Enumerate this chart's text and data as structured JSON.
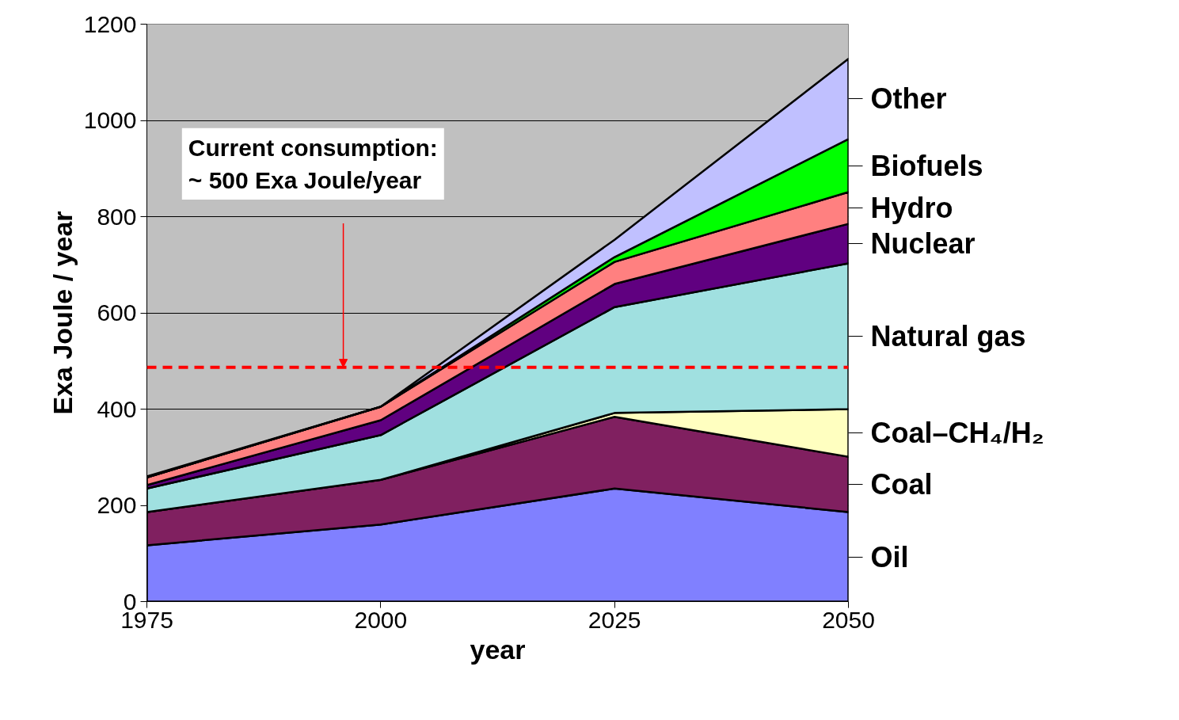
{
  "chart_data": {
    "type": "area",
    "stacked": true,
    "xlabel": "year",
    "ylabel": "Exa Joule / year",
    "x": [
      1975,
      2000,
      2025,
      2050
    ],
    "series": [
      {
        "name": "Oil",
        "color": "#8080ff",
        "values": [
          117,
          160,
          235,
          186
        ]
      },
      {
        "name": "Coal",
        "color": "#802060",
        "values": [
          69,
          93,
          149,
          115
        ]
      },
      {
        "name": "Coal–CH₄/H₂",
        "color": "#ffffc0",
        "values": [
          0,
          0,
          8,
          99
        ]
      },
      {
        "name": "Natural gas",
        "color": "#a0e0e0",
        "values": [
          49,
          93,
          220,
          303
        ]
      },
      {
        "name": "Nuclear",
        "color": "#600080",
        "values": [
          7,
          31,
          48,
          82
        ]
      },
      {
        "name": "Hydro",
        "color": "#ff8080",
        "values": [
          16,
          28,
          46,
          66
        ]
      },
      {
        "name": "Biofuels",
        "color": "#00ff00",
        "values": [
          0,
          0,
          10,
          110
        ]
      },
      {
        "name": "Other",
        "color": "#c0c0ff",
        "values": [
          2,
          0,
          36,
          167
        ]
      }
    ],
    "xlim": [
      1975,
      2050
    ],
    "xticks": [
      1975,
      2000,
      2025,
      2050
    ],
    "ylim": [
      0,
      1200
    ],
    "yticks": [
      0,
      200,
      400,
      600,
      800,
      1000,
      1200
    ],
    "grid": "y",
    "legend": "right",
    "ref_lines": [
      {
        "axis": "y",
        "value": 487,
        "color": "#ff0000",
        "line_style": "dashed"
      }
    ],
    "annotations": [
      {
        "text": "Current consumption:\n~ 500 Exa Joule/year",
        "x": 1996,
        "y": 487
      }
    ]
  }
}
